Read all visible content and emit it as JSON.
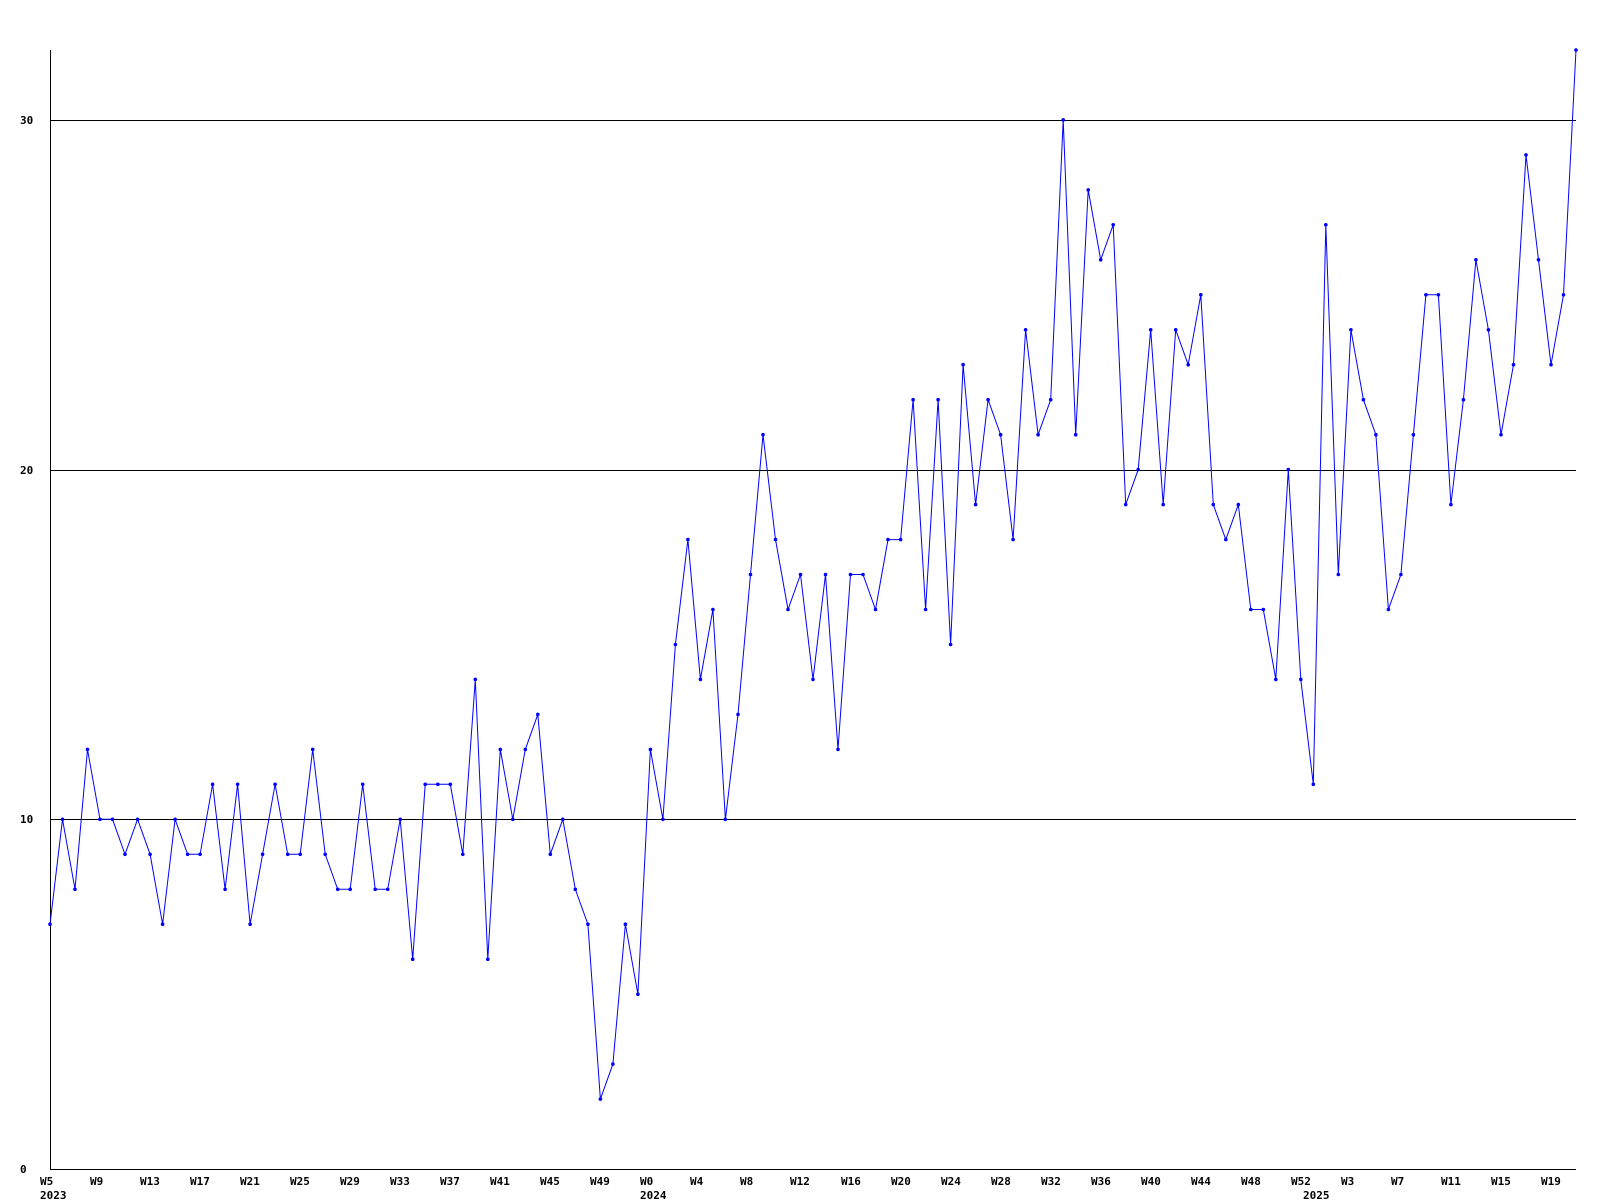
{
  "chart_data": {
    "type": "line",
    "title": "",
    "xlabel": "",
    "ylabel": "",
    "ylim": [
      0,
      32
    ],
    "grid_lines": [
      10,
      20,
      30
    ],
    "y_ticks": [
      {
        "value": 0,
        "label": "0"
      },
      {
        "value": 10,
        "label": "10"
      },
      {
        "value": 20,
        "label": "20"
      },
      {
        "value": 30,
        "label": "30"
      }
    ],
    "x_ticks": [
      {
        "index": 0,
        "label": "W5"
      },
      {
        "index": 4,
        "label": "W9"
      },
      {
        "index": 8,
        "label": "W13"
      },
      {
        "index": 12,
        "label": "W17"
      },
      {
        "index": 16,
        "label": "W21"
      },
      {
        "index": 20,
        "label": "W25"
      },
      {
        "index": 24,
        "label": "W29"
      },
      {
        "index": 28,
        "label": "W33"
      },
      {
        "index": 32,
        "label": "W37"
      },
      {
        "index": 36,
        "label": "W41"
      },
      {
        "index": 40,
        "label": "W45"
      },
      {
        "index": 44,
        "label": "W49"
      },
      {
        "index": 48,
        "label": "W0"
      },
      {
        "index": 52,
        "label": "W4"
      },
      {
        "index": 56,
        "label": "W8"
      },
      {
        "index": 60,
        "label": "W12"
      },
      {
        "index": 64,
        "label": "W16"
      },
      {
        "index": 68,
        "label": "W20"
      },
      {
        "index": 72,
        "label": "W24"
      },
      {
        "index": 76,
        "label": "W28"
      },
      {
        "index": 80,
        "label": "W32"
      },
      {
        "index": 84,
        "label": "W36"
      },
      {
        "index": 88,
        "label": "W40"
      },
      {
        "index": 92,
        "label": "W44"
      },
      {
        "index": 96,
        "label": "W48"
      },
      {
        "index": 100,
        "label": "W52"
      },
      {
        "index": 104,
        "label": "W3"
      },
      {
        "index": 108,
        "label": "W7"
      },
      {
        "index": 112,
        "label": "W11"
      },
      {
        "index": 116,
        "label": "W15"
      },
      {
        "index": 120,
        "label": "W19"
      }
    ],
    "year_labels": [
      {
        "index": 0,
        "label": "2023"
      },
      {
        "index": 48,
        "label": "2024"
      },
      {
        "index": 101,
        "label": "2025"
      }
    ],
    "color": "#0000ff",
    "series": [
      {
        "values": [
          7,
          10,
          8,
          12,
          10,
          10,
          9,
          10,
          9,
          7,
          10,
          9,
          9,
          11,
          8,
          11,
          7,
          9,
          11,
          9,
          9,
          12,
          9,
          8,
          8,
          11,
          8,
          8,
          10,
          6,
          11,
          11,
          11,
          9,
          14,
          6,
          12,
          10,
          12,
          13,
          9,
          10,
          8,
          7,
          2,
          3,
          7,
          5,
          12,
          10,
          15,
          18,
          14,
          16,
          10,
          13,
          17,
          21,
          18,
          16,
          17,
          14,
          17,
          12,
          17,
          17,
          16,
          18,
          18,
          22,
          16,
          22,
          15,
          23,
          19,
          22,
          21,
          18,
          24,
          21,
          22,
          30,
          21,
          28,
          26,
          27,
          19,
          20,
          24,
          19,
          24,
          23,
          25,
          19,
          18,
          19,
          16,
          16,
          14,
          20,
          14,
          11,
          27,
          17,
          24,
          22,
          21,
          16,
          17,
          21,
          25,
          25,
          19,
          22,
          26,
          24,
          21,
          23,
          29,
          26,
          23,
          25,
          32
        ]
      }
    ]
  }
}
